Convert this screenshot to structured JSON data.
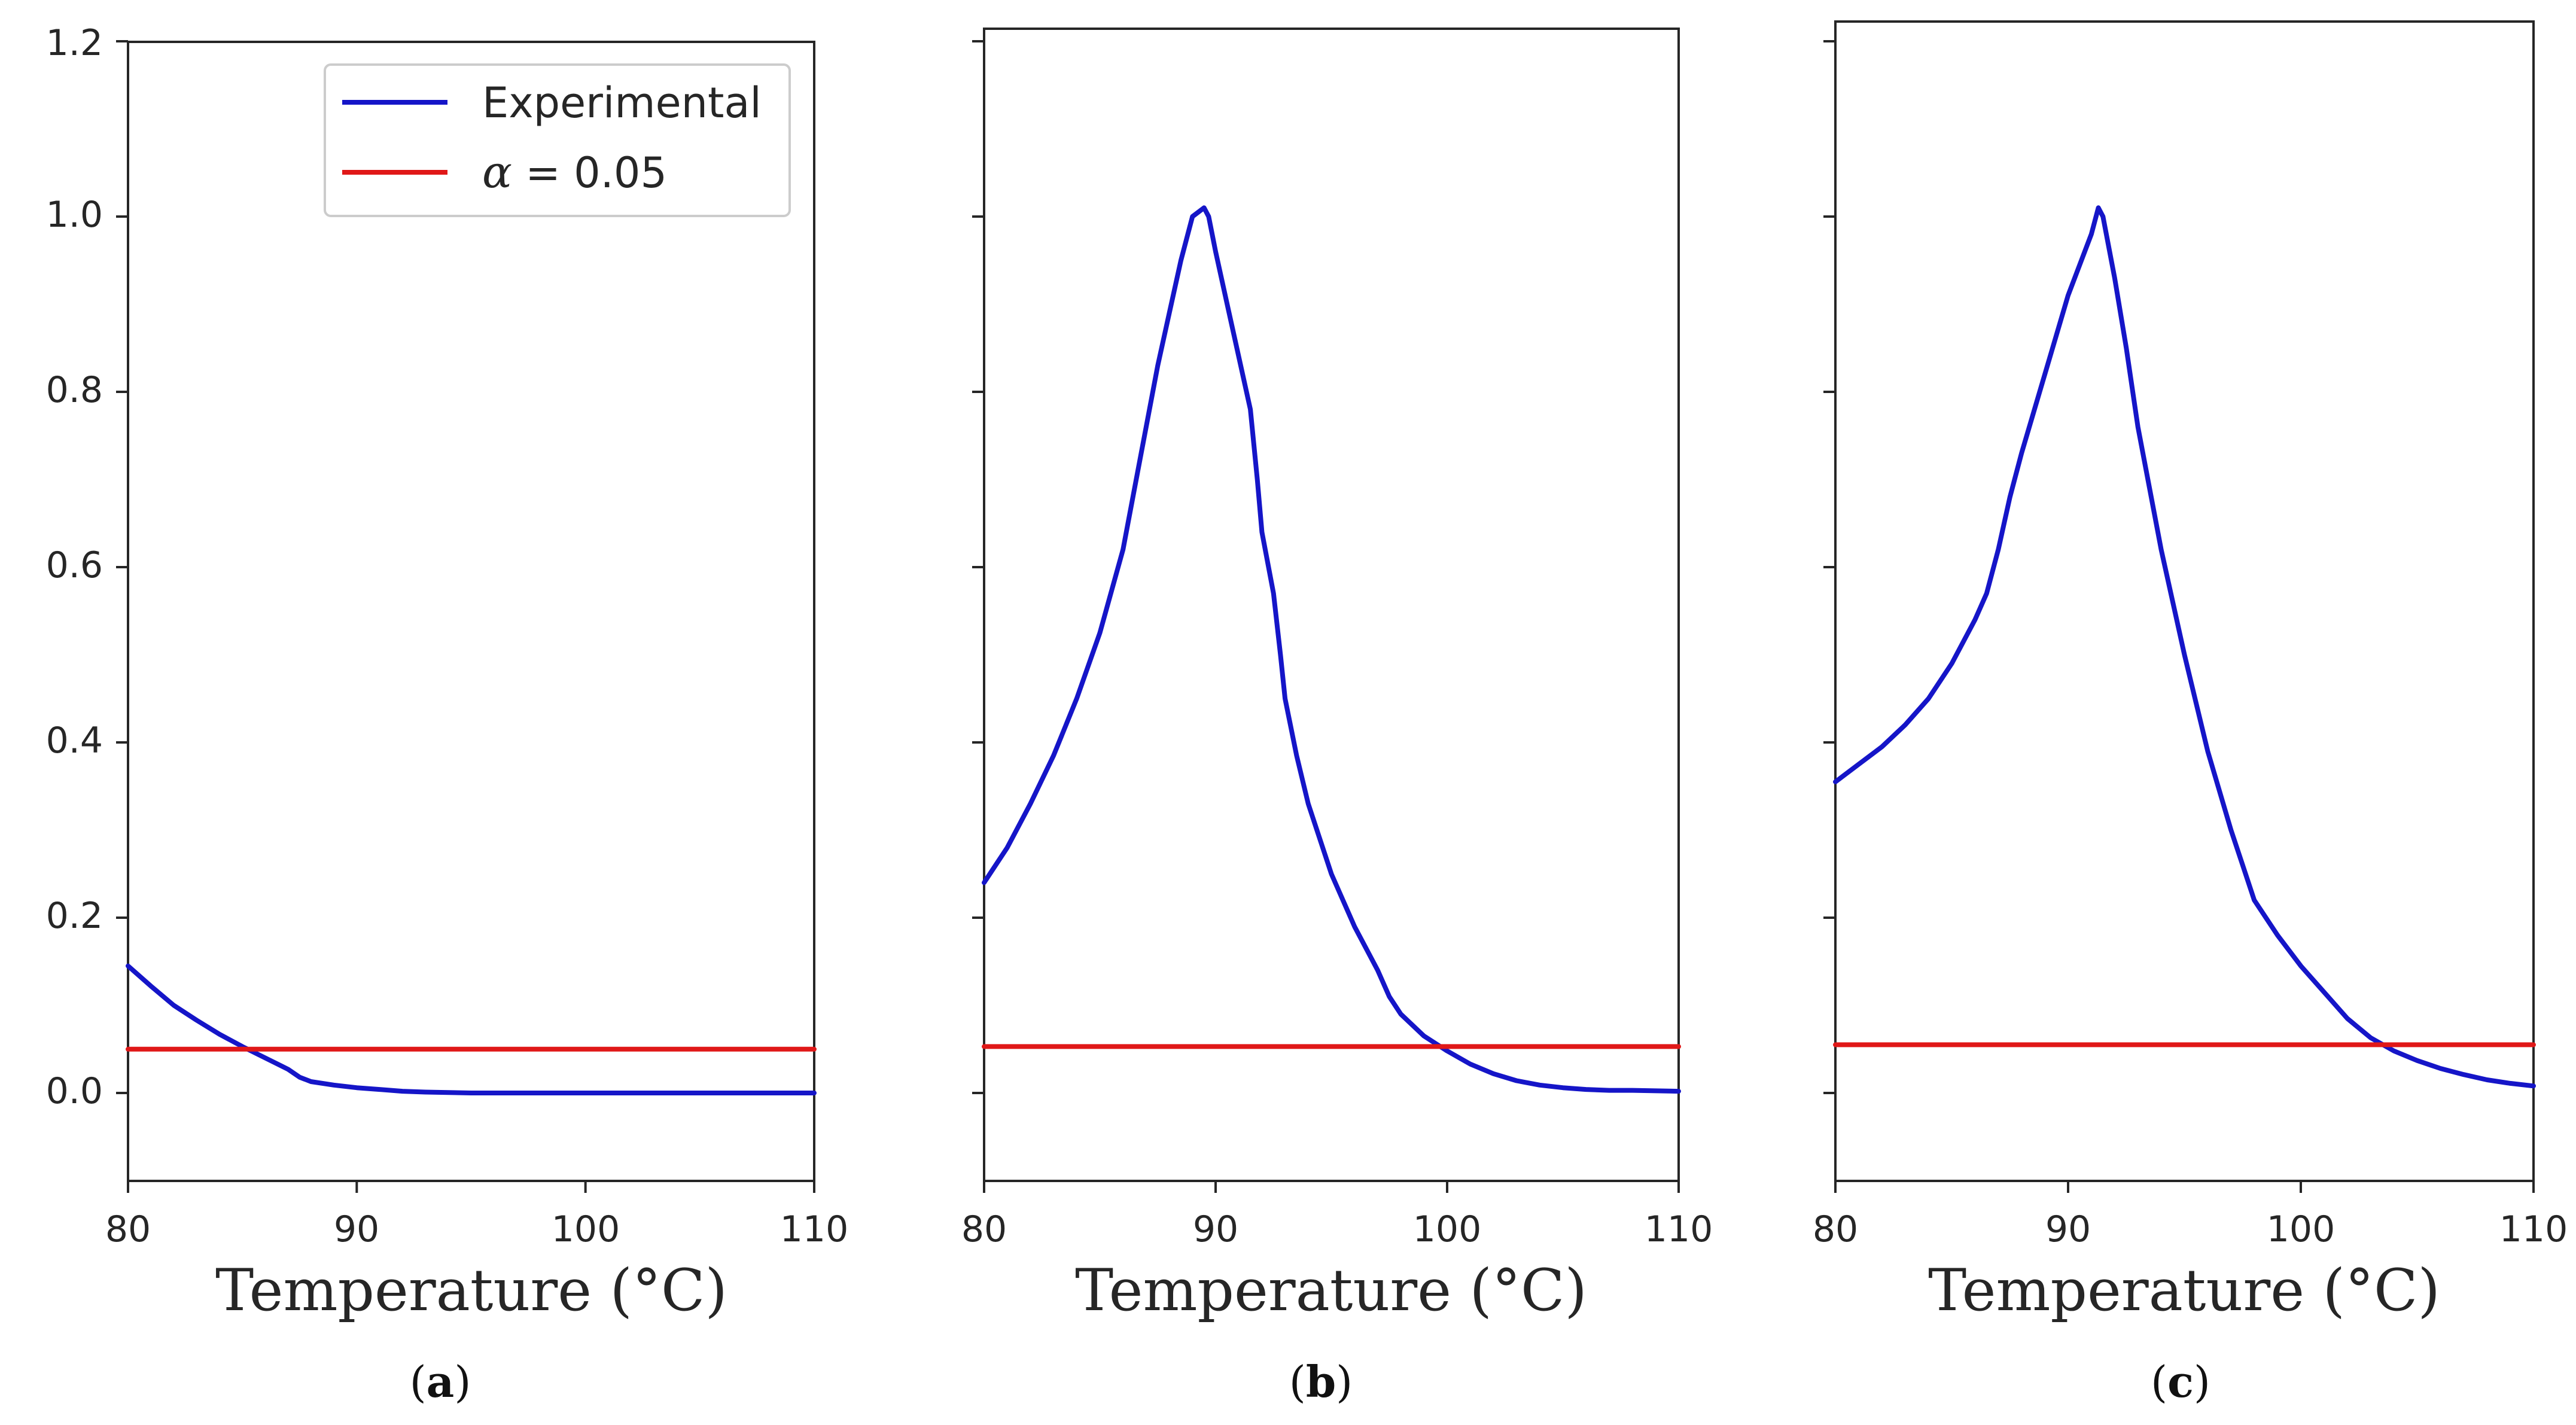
{
  "figure": {
    "colors": {
      "experimental": "#1515c8",
      "alpha": "#e01818",
      "axes": "#262626"
    },
    "legend": {
      "location": "upper-right of panel a",
      "experimental_label": "Experimental",
      "alpha_symbol": "α",
      "alpha_rest": " = 0.05"
    }
  },
  "chart_data": [
    {
      "panel": "a",
      "caption_open": "(",
      "caption_letter": "a",
      "caption_close": ")",
      "type": "line",
      "xlabel": "Temperature (°C)",
      "ylabel": "",
      "xlim": [
        80,
        110
      ],
      "ylim": [
        -0.1,
        1.2
      ],
      "xticks": [
        80,
        90,
        100,
        110
      ],
      "xtick_labels": [
        "80",
        "90",
        "100",
        "110"
      ],
      "yticks": [
        0.0,
        0.2,
        0.4,
        0.6,
        0.8,
        1.0,
        1.2
      ],
      "ytick_labels": [
        "0.0",
        "0.2",
        "0.4",
        "0.6",
        "0.8",
        "1.0",
        "1.2"
      ],
      "show_ytick_labels": true,
      "series": [
        {
          "name": "Experimental",
          "x": [
            80,
            81,
            82,
            83,
            84,
            85,
            86,
            87,
            87.5,
            88,
            89,
            90,
            91,
            92,
            93,
            95,
            100,
            105,
            110
          ],
          "y": [
            0.145,
            0.122,
            0.1,
            0.083,
            0.067,
            0.053,
            0.04,
            0.027,
            0.018,
            0.013,
            0.009,
            0.006,
            0.004,
            0.002,
            0.001,
            0.0,
            0.0,
            0.0,
            0.0
          ]
        },
        {
          "name": "α = 0.05",
          "x": [
            80,
            110
          ],
          "y": [
            0.05,
            0.05
          ]
        }
      ]
    },
    {
      "panel": "b",
      "caption_open": "(",
      "caption_letter": "b",
      "caption_close": ")",
      "type": "line",
      "xlabel": "Temperature (°C)",
      "ylabel": "",
      "xlim": [
        80,
        110
      ],
      "ylim": [
        -0.1,
        1.2
      ],
      "xticks": [
        80,
        90,
        100,
        110
      ],
      "xtick_labels": [
        "80",
        "90",
        "100",
        "110"
      ],
      "yticks": [
        0.0,
        0.2,
        0.4,
        0.6,
        0.8,
        1.0,
        1.2
      ],
      "ytick_labels": [
        "0.0",
        "0.2",
        "0.4",
        "0.6",
        "0.8",
        "1.0",
        "1.2"
      ],
      "show_ytick_labels": false,
      "series": [
        {
          "name": "Experimental",
          "x": [
            80,
            81,
            82,
            83,
            84,
            85,
            86,
            86.5,
            87,
            87.5,
            88,
            88.5,
            89,
            89.5,
            89.7,
            90,
            90.5,
            91,
            91.5,
            91.8,
            92,
            92.5,
            92.8,
            93,
            93.5,
            94,
            95,
            96,
            97,
            97.5,
            98,
            99,
            100,
            101,
            102,
            103,
            104,
            105,
            106,
            107,
            108,
            110
          ],
          "y": [
            0.24,
            0.28,
            0.33,
            0.385,
            0.45,
            0.525,
            0.62,
            0.69,
            0.76,
            0.83,
            0.89,
            0.95,
            1.0,
            1.01,
            1.0,
            0.96,
            0.9,
            0.84,
            0.78,
            0.7,
            0.64,
            0.57,
            0.5,
            0.45,
            0.385,
            0.33,
            0.25,
            0.19,
            0.14,
            0.11,
            0.09,
            0.065,
            0.048,
            0.033,
            0.022,
            0.014,
            0.009,
            0.006,
            0.004,
            0.003,
            0.003,
            0.002
          ]
        },
        {
          "name": "α = 0.05",
          "x": [
            80,
            110
          ],
          "y": [
            0.053,
            0.053
          ]
        }
      ]
    },
    {
      "panel": "c",
      "caption_open": "(",
      "caption_letter": "c",
      "caption_close": ")",
      "type": "line",
      "xlabel": "Temperature (°C)",
      "ylabel": "",
      "xlim": [
        80,
        110
      ],
      "ylim": [
        -0.1,
        1.2
      ],
      "xticks": [
        80,
        90,
        100,
        110
      ],
      "xtick_labels": [
        "80",
        "90",
        "100",
        "110"
      ],
      "yticks": [
        0.0,
        0.2,
        0.4,
        0.6,
        0.8,
        1.0,
        1.2
      ],
      "ytick_labels": [
        "0.0",
        "0.2",
        "0.4",
        "0.6",
        "0.8",
        "1.0",
        "1.2"
      ],
      "show_ytick_labels": false,
      "series": [
        {
          "name": "Experimental",
          "x": [
            80,
            81,
            82,
            83,
            84,
            85,
            86,
            86.5,
            87,
            87.5,
            88,
            89,
            90,
            91,
            91.3,
            91.5,
            92,
            92.5,
            93,
            94,
            95,
            96,
            97,
            97.5,
            98,
            99,
            100,
            101,
            102,
            103,
            104,
            105,
            106,
            107,
            108,
            109,
            110
          ],
          "y": [
            0.355,
            0.375,
            0.395,
            0.42,
            0.45,
            0.49,
            0.54,
            0.57,
            0.62,
            0.68,
            0.73,
            0.82,
            0.91,
            0.98,
            1.01,
            1.0,
            0.93,
            0.85,
            0.76,
            0.62,
            0.5,
            0.39,
            0.3,
            0.26,
            0.22,
            0.18,
            0.145,
            0.115,
            0.085,
            0.063,
            0.048,
            0.037,
            0.028,
            0.021,
            0.015,
            0.011,
            0.008
          ]
        },
        {
          "name": "α = 0.05",
          "x": [
            80,
            110
          ],
          "y": [
            0.055,
            0.055
          ]
        }
      ]
    }
  ]
}
